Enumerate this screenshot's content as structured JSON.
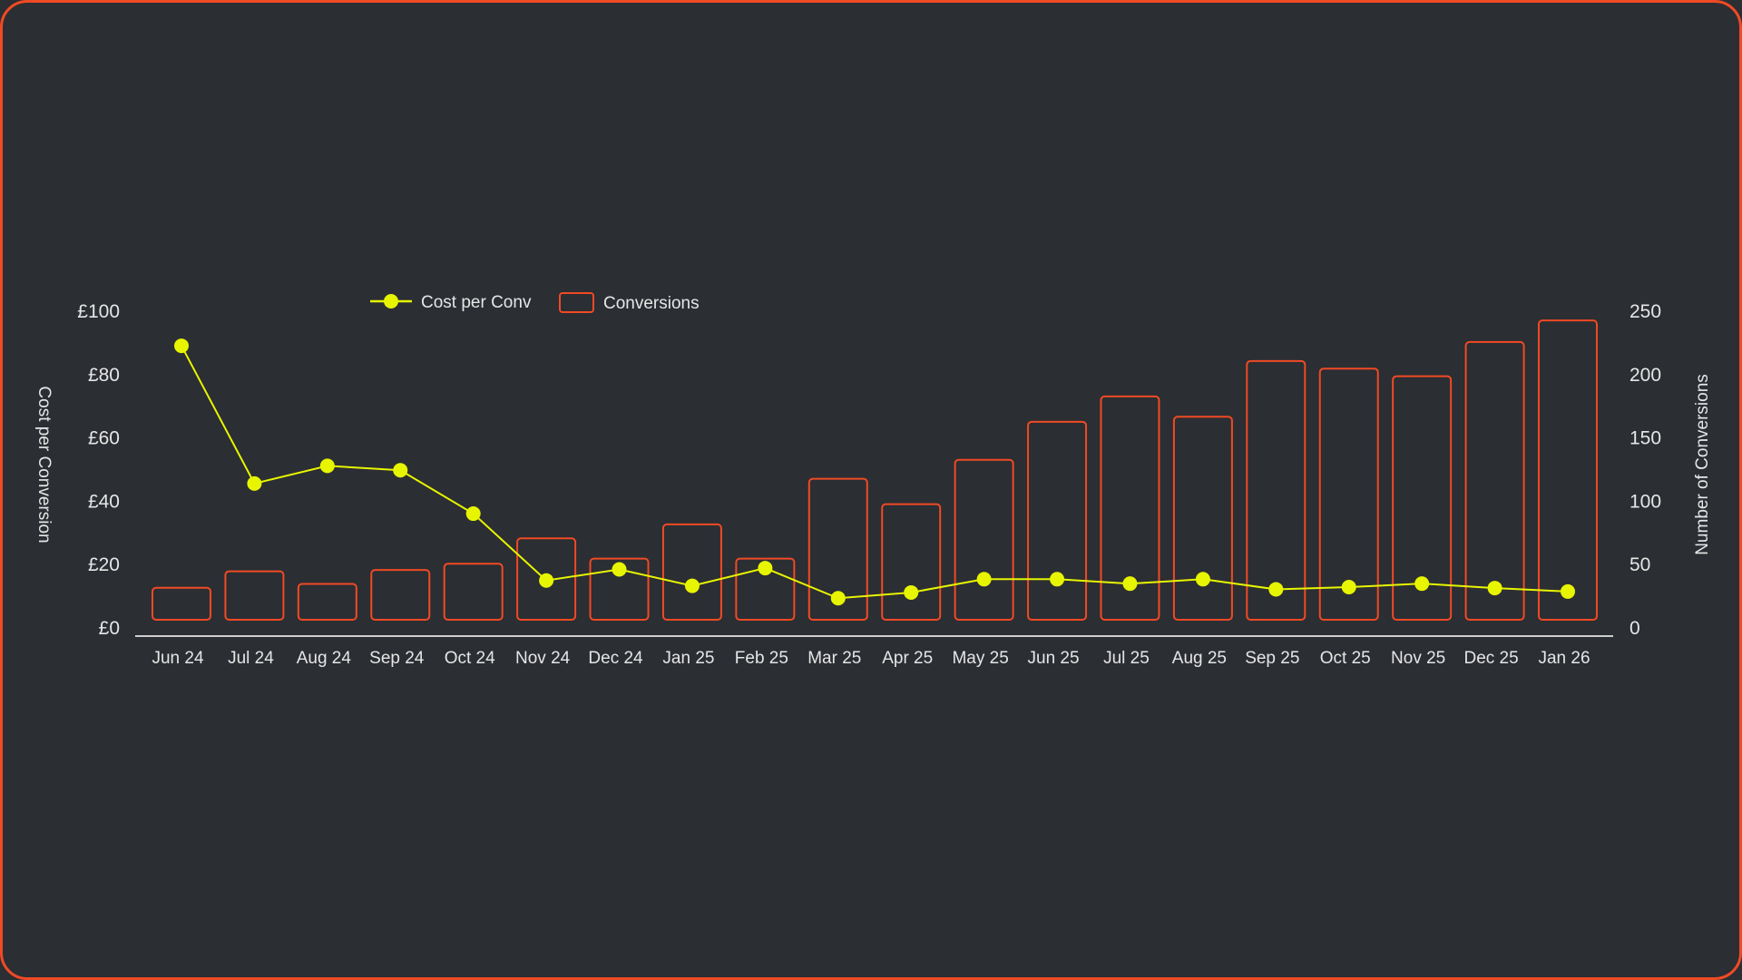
{
  "chart_data": {
    "type": "bar+line",
    "categories": [
      "Jun 24",
      "Jul 24",
      "Aug 24",
      "Sep 24",
      "Oct 24",
      "Nov 24",
      "Dec 24",
      "Jan 25",
      "Feb 25",
      "Mar 25",
      "Apr 25",
      "May 25",
      "Jun 25",
      "Jul 25",
      "Aug 25",
      "Sep 25",
      "Oct 25",
      "Nov 25",
      "Dec 25",
      "Jan 26"
    ],
    "series": [
      {
        "name": "Cost per Conv",
        "type": "line",
        "axis": "left",
        "color": "#e8f500",
        "values": [
          88.8,
          45.3,
          50.9,
          49.5,
          35.8,
          14.7,
          18.2,
          13.0,
          18.6,
          9.1,
          10.9,
          15.1,
          15.1,
          13.7,
          15.1,
          11.9,
          12.6,
          13.7,
          12.3,
          11.2
        ]
      },
      {
        "name": "Conversions",
        "type": "bar",
        "axis": "right",
        "color": "#f04a24",
        "values": [
          31,
          44,
          34,
          45,
          50,
          70,
          54,
          81,
          54,
          117,
          97,
          132,
          162,
          182,
          166,
          210,
          204,
          198,
          225,
          242
        ]
      }
    ],
    "ylabel": "Cost per Conversion",
    "y2label": "Number of Conversions",
    "ylim": [
      0,
      100
    ],
    "y2lim": [
      0,
      250
    ],
    "yticks": [
      "£0",
      "£20",
      "£40",
      "£60",
      "£80",
      "£100"
    ],
    "y2ticks": [
      "0",
      "50",
      "100",
      "150",
      "200",
      "250"
    ],
    "legend": "top-left"
  }
}
